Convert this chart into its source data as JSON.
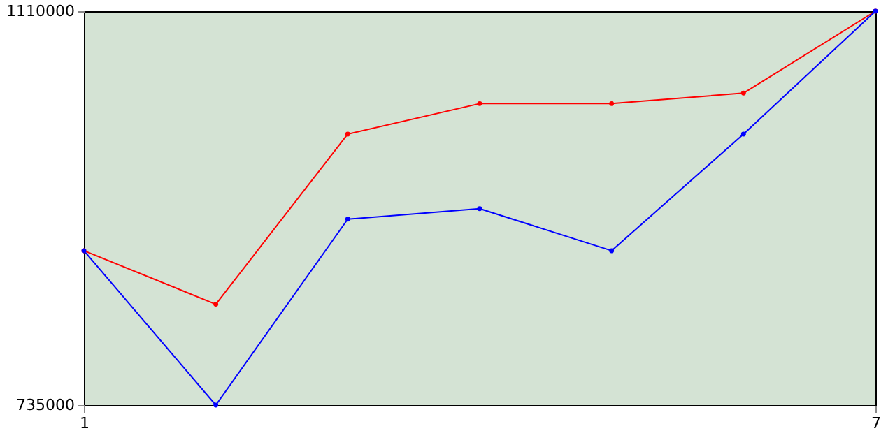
{
  "chart_data": {
    "type": "line",
    "x": [
      1,
      2,
      3,
      4,
      5,
      6,
      7
    ],
    "series": [
      {
        "color": "#ff0000",
        "values": [
          882000,
          831000,
          993000,
          1022000,
          1022000,
          1032000,
          1110000
        ]
      },
      {
        "color": "#0000ff",
        "values": [
          882000,
          735000,
          912000,
          922000,
          882000,
          993000,
          1110000
        ]
      }
    ],
    "xlim": [
      1,
      7
    ],
    "xticks": [
      1,
      7
    ],
    "ylim": [
      735000,
      1110000
    ],
    "yticks": [
      735000,
      1110000
    ],
    "marker": "circle",
    "grid": false
  }
}
